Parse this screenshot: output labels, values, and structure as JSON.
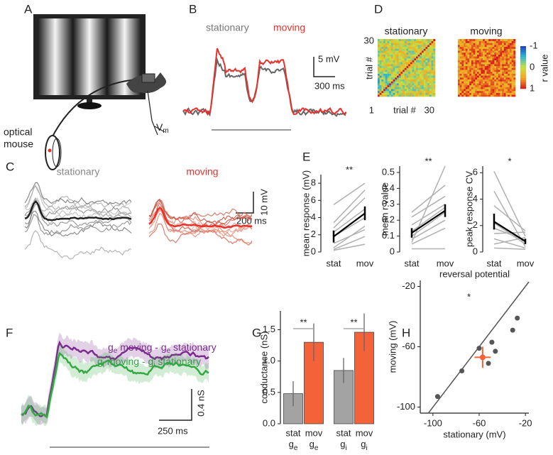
{
  "panel_labels": [
    "A",
    "B",
    "C",
    "D",
    "E",
    "F",
    "G",
    "H"
  ],
  "A": {
    "label_lines": [
      "optical",
      "mouse"
    ],
    "vm": [
      "V",
      "m"
    ]
  },
  "B": {
    "legend": [
      "stationary",
      "moving"
    ],
    "scale_y": "5 mV",
    "scale_x": "300 ms"
  },
  "C": {
    "titles": [
      "stationary",
      "moving"
    ],
    "scale_y": "10 mV",
    "scale_x": "200 ms"
  },
  "D": {
    "titles": [
      "stationary",
      "moving"
    ],
    "y_label": "trial #",
    "x_label": "trial #",
    "axis_ticks": [
      30,
      1,
      30
    ],
    "colorbar_label": "r value",
    "colorbar_ticks": [
      -1,
      0,
      1
    ]
  },
  "F": {
    "legend": [
      [
        "g",
        "e",
        " moving - g",
        "e",
        " stationary"
      ],
      [
        "g",
        "i",
        " moving - g",
        "i",
        " stationary"
      ]
    ],
    "scale_y": "0.4 nS",
    "scale_x": "250 ms"
  },
  "chart_data": [
    {
      "type": "paired",
      "y_label": "mean response (mV)",
      "categories": [
        "stat",
        "mov"
      ],
      "pairs": [
        [
          0.3,
          1.8
        ],
        [
          0.5,
          3.0
        ],
        [
          1.0,
          2.6
        ],
        [
          1.8,
          4.0
        ],
        [
          2.3,
          5.0
        ],
        [
          2.8,
          6.3
        ],
        [
          3.4,
          7.2
        ],
        [
          5.5,
          8.0
        ],
        [
          0.2,
          0.9
        ]
      ],
      "mean": [
        1.8,
        4.5
      ],
      "error": [
        0.7,
        0.8
      ],
      "significance": "**",
      "ylim": [
        0,
        9
      ],
      "yticks": [
        0,
        2,
        4,
        6,
        8
      ],
      "pair_color": "#b0b0b0",
      "mean_color": "#000000"
    },
    {
      "type": "paired",
      "y_label": "mean r value",
      "categories": [
        "stat",
        "mov"
      ],
      "pairs": [
        [
          0.02,
          0.02
        ],
        [
          0.05,
          0.15
        ],
        [
          0.08,
          0.2
        ],
        [
          0.1,
          0.25
        ],
        [
          0.13,
          0.28
        ],
        [
          0.17,
          0.3
        ],
        [
          0.22,
          0.35
        ],
        [
          0.25,
          0.42
        ],
        [
          0.06,
          0.54
        ]
      ],
      "mean": [
        0.12,
        0.26
      ],
      "error": [
        0.03,
        0.04
      ],
      "significance": "**",
      "ylim": [
        0,
        0.54
      ],
      "yticks": [
        0,
        0.1,
        0.2,
        0.3,
        0.4,
        0.5
      ],
      "pair_color": "#b0b0b0",
      "mean_color": "#000000"
    },
    {
      "type": "paired",
      "y_label": "peak response CV",
      "categories": [
        "stat",
        "mov"
      ],
      "pairs": [
        [
          6.1,
          1.2
        ],
        [
          4.6,
          0.4
        ],
        [
          3.5,
          1.6
        ],
        [
          2.2,
          0.6
        ],
        [
          1.8,
          0.9
        ],
        [
          1.4,
          1.5
        ],
        [
          1.0,
          0.3
        ],
        [
          0.6,
          1.1
        ],
        [
          0.3,
          0.2
        ]
      ],
      "mean": [
        2.3,
        0.8
      ],
      "error": [
        0.6,
        0.2
      ],
      "significance": "*",
      "ylim": [
        0,
        6.5
      ],
      "yticks": [
        0,
        2,
        4,
        6
      ],
      "pair_color": "#b0b0b0",
      "mean_color": "#000000"
    },
    {
      "type": "bar",
      "y_label": "conductance (nS)",
      "categories": [
        "stat",
        "mov",
        "stat",
        "mov"
      ],
      "sublabels": [
        [
          "g",
          "e"
        ],
        [
          "g",
          "e"
        ],
        [
          "g",
          "i"
        ],
        [
          "g",
          "i"
        ]
      ],
      "values": [
        0.48,
        1.3,
        0.85,
        1.46
      ],
      "errors": [
        0.2,
        0.3,
        0.2,
        0.3
      ],
      "colors": [
        "#a3a3a3",
        "#f4623a",
        "#a3a3a3",
        "#f4623a"
      ],
      "significance": [
        "**",
        "**"
      ],
      "ylim": [
        0,
        1.8
      ],
      "yticks": [
        {
          "value": 0,
          "label": "0.0"
        },
        0.5,
        {
          "value": 1,
          "label": "1.0"
        },
        1.5
      ]
    },
    {
      "type": "scatter",
      "title": "reversal potential",
      "x_label": "stationary (mV)",
      "y_label": "moving (mV)",
      "x": [
        -96,
        -75,
        -60,
        -49,
        -52,
        -46,
        -31,
        -27
      ],
      "y": [
        -93,
        -76,
        -61,
        -57,
        -71,
        -63,
        -49,
        -41
      ],
      "color": "#555555",
      "mean": {
        "x": -57,
        "y": -67,
        "xerr": 7,
        "yerr": 7,
        "color": "#f4623a"
      },
      "annotation": "*",
      "xlim": [
        -111,
        -17
      ],
      "ylim": [
        -104,
        -16
      ],
      "xticks": [
        -100,
        -60,
        -20
      ],
      "yticks": [
        -100,
        -60,
        -20
      ],
      "identity_line": true
    }
  ]
}
